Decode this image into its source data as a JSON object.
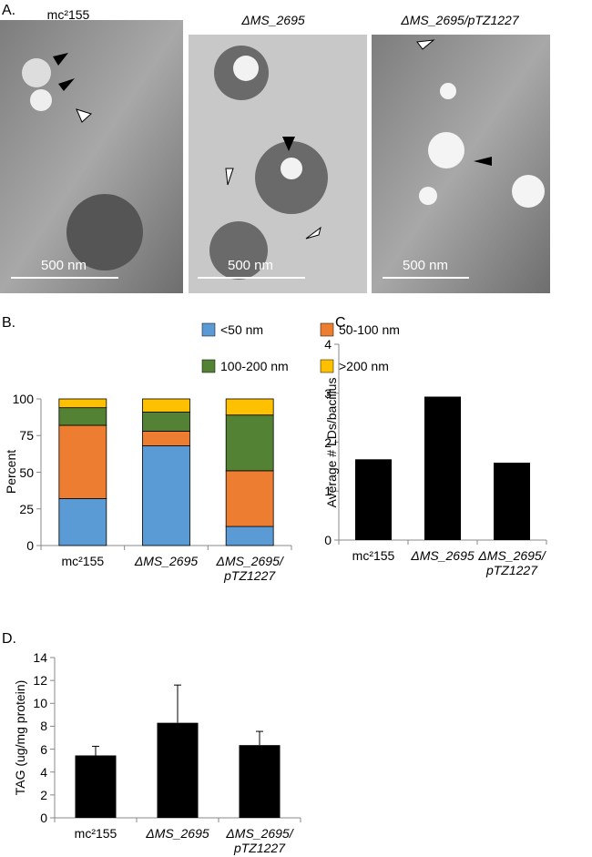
{
  "panel_labels": [
    "A.",
    "B.",
    "C.",
    "D."
  ],
  "micrographs": [
    {
      "title": "mc²155",
      "scale_bar": "500 nm"
    },
    {
      "title": "ΔMS_2695",
      "scale_bar": "500 nm"
    },
    {
      "title": "ΔMS_2695/pTZ1227",
      "scale_bar": "500 nm"
    }
  ],
  "chart_data": [
    {
      "type": "bar",
      "stacked": true,
      "y_label": "Percent",
      "categories": [
        "mc²155",
        "ΔMS_2695",
        "ΔMS_2695/\npTZ1227"
      ],
      "series": [
        {
          "name": "<50 nm",
          "color": "#5b9bd5",
          "values": [
            32,
            68,
            13
          ]
        },
        {
          "name": "50-100 nm",
          "color": "#ed7d31",
          "values": [
            50,
            10,
            38
          ]
        },
        {
          "name": "100-200 nm",
          "color": "#548235",
          "values": [
            12,
            13,
            38
          ]
        },
        {
          "name": ">200 nm",
          "color": "#ffc000",
          "values": [
            6,
            9,
            11
          ]
        }
      ],
      "ylim": [
        0,
        100
      ],
      "yticks": [
        0,
        25,
        50,
        75,
        100
      ]
    },
    {
      "type": "bar",
      "y_label": "Average # LDs/bacillus",
      "categories": [
        "mc²155",
        "ΔMS_2695",
        "ΔMS_2695/\npTZ1227"
      ],
      "values": [
        1.65,
        2.93,
        1.58
      ],
      "color": "#000000",
      "ylim": [
        0,
        4
      ],
      "yticks": [
        0,
        1,
        2,
        3,
        4
      ]
    },
    {
      "type": "bar",
      "y_label": "TAG (ug/mg protein)",
      "categories": [
        "mc²155",
        "ΔMS_2695",
        "ΔMS_2695/\npTZ1227"
      ],
      "values": [
        5.45,
        8.3,
        6.35
      ],
      "errors": [
        0.8,
        3.3,
        1.2
      ],
      "color": "#000000",
      "ylim": [
        0,
        14
      ],
      "yticks": [
        0,
        2,
        4,
        6,
        8,
        10,
        12,
        14
      ]
    }
  ]
}
